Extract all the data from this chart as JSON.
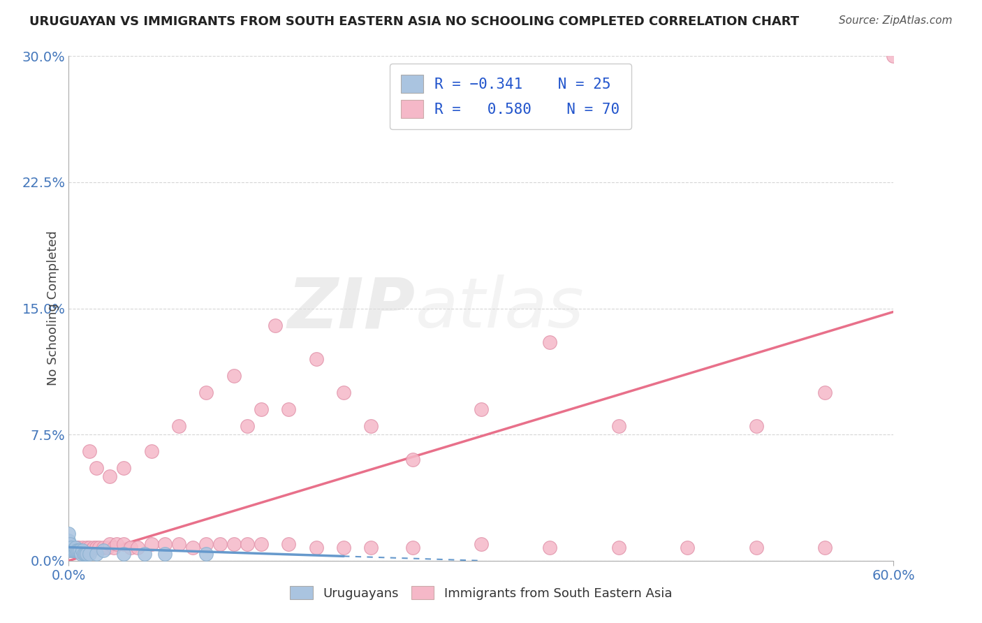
{
  "title": "URUGUAYAN VS IMMIGRANTS FROM SOUTH EASTERN ASIA NO SCHOOLING COMPLETED CORRELATION CHART",
  "source": "Source: ZipAtlas.com",
  "ylabel": "No Schooling Completed",
  "xlim": [
    0.0,
    0.6
  ],
  "ylim": [
    0.0,
    0.3
  ],
  "color_blue": "#aac4e0",
  "color_blue_line": "#6699cc",
  "color_pink": "#f5b8c8",
  "color_pink_line": "#e8708a",
  "background_color": "#ffffff",
  "grid_color": "#cccccc",
  "ytick_values": [
    0.0,
    0.075,
    0.15,
    0.225,
    0.3
  ],
  "ytick_labels": [
    "0.0%",
    "7.5%",
    "15.0%",
    "22.5%",
    "30.0%"
  ],
  "xtick_values": [
    0.0,
    0.6
  ],
  "xtick_labels": [
    "0.0%",
    "60.0%"
  ],
  "uru_x": [
    0.0,
    0.0,
    0.0,
    0.001,
    0.001,
    0.002,
    0.003,
    0.004,
    0.005,
    0.005,
    0.006,
    0.007,
    0.008,
    0.009,
    0.01,
    0.011,
    0.012,
    0.013,
    0.015,
    0.02,
    0.025,
    0.04,
    0.055,
    0.07,
    0.1
  ],
  "uru_y": [
    0.008,
    0.012,
    0.016,
    0.006,
    0.01,
    0.008,
    0.006,
    0.006,
    0.006,
    0.008,
    0.006,
    0.006,
    0.006,
    0.004,
    0.006,
    0.004,
    0.004,
    0.004,
    0.004,
    0.004,
    0.006,
    0.004,
    0.004,
    0.004,
    0.004
  ],
  "sea_x": [
    0.0,
    0.0,
    0.001,
    0.001,
    0.002,
    0.003,
    0.004,
    0.005,
    0.006,
    0.007,
    0.008,
    0.009,
    0.01,
    0.012,
    0.013,
    0.015,
    0.016,
    0.018,
    0.02,
    0.022,
    0.025,
    0.028,
    0.03,
    0.033,
    0.035,
    0.04,
    0.045,
    0.05,
    0.06,
    0.07,
    0.08,
    0.09,
    0.1,
    0.11,
    0.12,
    0.13,
    0.14,
    0.16,
    0.18,
    0.2,
    0.22,
    0.25,
    0.3,
    0.35,
    0.4,
    0.45,
    0.5,
    0.55,
    0.13,
    0.16,
    0.18,
    0.2,
    0.22,
    0.25,
    0.15,
    0.1,
    0.08,
    0.06,
    0.04,
    0.03,
    0.02,
    0.015,
    0.12,
    0.14,
    0.3,
    0.35,
    0.4,
    0.5,
    0.55,
    0.6
  ],
  "sea_y": [
    0.006,
    0.008,
    0.006,
    0.008,
    0.006,
    0.008,
    0.006,
    0.006,
    0.008,
    0.008,
    0.006,
    0.006,
    0.008,
    0.006,
    0.008,
    0.008,
    0.006,
    0.008,
    0.008,
    0.008,
    0.008,
    0.008,
    0.01,
    0.008,
    0.01,
    0.01,
    0.008,
    0.008,
    0.01,
    0.01,
    0.01,
    0.008,
    0.01,
    0.01,
    0.01,
    0.01,
    0.01,
    0.01,
    0.008,
    0.008,
    0.008,
    0.008,
    0.01,
    0.008,
    0.008,
    0.008,
    0.008,
    0.008,
    0.08,
    0.09,
    0.12,
    0.1,
    0.08,
    0.06,
    0.14,
    0.1,
    0.08,
    0.065,
    0.055,
    0.05,
    0.055,
    0.065,
    0.11,
    0.09,
    0.09,
    0.13,
    0.08,
    0.08,
    0.1,
    0.3
  ],
  "uru_line_x": [
    0.0,
    0.3
  ],
  "uru_line_y": [
    0.008,
    0.0
  ],
  "sea_line_x": [
    0.0,
    0.6
  ],
  "sea_line_y": [
    0.0,
    0.148
  ]
}
